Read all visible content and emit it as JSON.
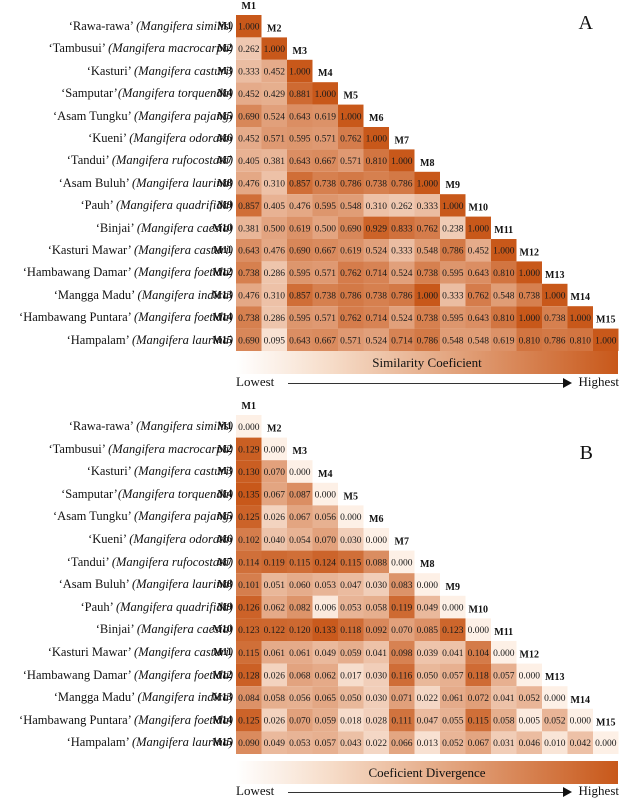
{
  "chart_data": [
    {
      "type": "heatmap",
      "panel_label": "A",
      "title": "Similarity Coeficient",
      "legend": {
        "title": "Similarity Coeficient",
        "low_label": "Lowest",
        "high_label": "Highest",
        "low_color": "#ffffff",
        "high_color": "#c8581a"
      },
      "row_labels": [
        {
          "name": "‘Rawa-rawa’ ",
          "species": "(Mangifera similis)",
          "code": "M1"
        },
        {
          "name": "‘Tambusui’ ",
          "species": "(Mangifera macrocarpa)",
          "code": "M2"
        },
        {
          "name": "‘Kasturi’ ",
          "species": "(Mangifera casturi)",
          "code": "M3"
        },
        {
          "name": "‘Samputar’",
          "species": "(Mangifera torquenda)",
          "code": "M4"
        },
        {
          "name": "‘Asam Tungku’ ",
          "species": "(Mangifera pajang)",
          "code": "M5"
        },
        {
          "name": "‘Kueni’ ",
          "species": "(Mangifera odorata)",
          "code": "M6"
        },
        {
          "name": "‘Tandui’ ",
          "species": "(Mangifera rufocostata)",
          "code": "M7"
        },
        {
          "name": "‘Asam Buluh’ ",
          "species": "(Mangifera laurina)",
          "code": "M8"
        },
        {
          "name": "‘Pauh’ ",
          "species": "(Mangifera quadrifida)",
          "code": "M9"
        },
        {
          "name": "‘Binjai’ ",
          "species": "(Mangifera caesia)",
          "code": "M10"
        },
        {
          "name": "‘Kasturi Mawar’ ",
          "species": "(Mangifera casturi)",
          "code": "M11"
        },
        {
          "name": "‘Hambawang Damar’ ",
          "species": "(Mangifera foetida)",
          "code": "M12"
        },
        {
          "name": "‘Mangga Madu’ ",
          "species": "(Mangifera indica)",
          "code": "M13"
        },
        {
          "name": "‘Hambawang Puntara’ ",
          "species": "(Mangifera foetida)",
          "code": "M14"
        },
        {
          "name": "‘Hampalam’ ",
          "species": "(Mangifera laurina)",
          "code": "M15"
        }
      ],
      "col_labels": [
        "M1",
        "M2",
        "M3",
        "M4",
        "M5",
        "M6",
        "M7",
        "M8",
        "M9",
        "M10",
        "M11",
        "M12",
        "M13",
        "M14",
        "M15"
      ],
      "value_range": [
        0,
        1
      ],
      "matrix": [
        [
          "1.000"
        ],
        [
          "0.262",
          "1.000"
        ],
        [
          "0.333",
          "0.452",
          "1.000"
        ],
        [
          "0.452",
          "0.429",
          "0.881",
          "1.000"
        ],
        [
          "0.690",
          "0.524",
          "0.643",
          "0.619",
          "1.000"
        ],
        [
          "0.452",
          "0.571",
          "0.595",
          "0.571",
          "0.762",
          "1.000"
        ],
        [
          "0.405",
          "0.381",
          "0.643",
          "0.667",
          "0.571",
          "0.810",
          "1.000"
        ],
        [
          "0.476",
          "0.310",
          "0.857",
          "0.738",
          "0.786",
          "0.738",
          "0.786",
          "1.000"
        ],
        [
          "0.857",
          "0.405",
          "0.476",
          "0.595",
          "0.548",
          "0.310",
          "0.262",
          "0.333",
          "1.000"
        ],
        [
          "0.381",
          "0.500",
          "0.619",
          "0.500",
          "0.690",
          "0.929",
          "0.833",
          "0.762",
          "0.238",
          "1.000"
        ],
        [
          "0.643",
          "0.476",
          "0.690",
          "0.667",
          "0.619",
          "0.524",
          "0.333",
          "0.548",
          "0.786",
          "0.452",
          "1.000"
        ],
        [
          "0.738",
          "0.286",
          "0.595",
          "0.571",
          "0.762",
          "0.714",
          "0.524",
          "0.738",
          "0.595",
          "0.643",
          "0.810",
          "1.000"
        ],
        [
          "0.476",
          "0.310",
          "0.857",
          "0.738",
          "0.786",
          "0.738",
          "0.786",
          "1.000",
          "0.333",
          "0.762",
          "0.548",
          "0.738",
          "1.000"
        ],
        [
          "0.738",
          "0.286",
          "0.595",
          "0.571",
          "0.762",
          "0.714",
          "0.524",
          "0.738",
          "0.595",
          "0.643",
          "0.810",
          "1.000",
          "0.738",
          "1.000"
        ],
        [
          "0.690",
          "0.095",
          "0.643",
          "0.667",
          "0.571",
          "0.524",
          "0.714",
          "0.786",
          "0.548",
          "0.548",
          "0.619",
          "0.810",
          "0.786",
          "0.810",
          "1.000"
        ]
      ]
    },
    {
      "type": "heatmap",
      "panel_label": "B",
      "title": "Coeficient Divergence",
      "legend": {
        "title": "Coeficient Divergence",
        "low_label": "Lowest",
        "high_label": "Highest",
        "low_color": "#ffffff",
        "high_color": "#c8581a"
      },
      "row_labels": [
        {
          "name": "‘Rawa-rawa’ ",
          "species": "(Mangifera similis)",
          "code": "M1"
        },
        {
          "name": "‘Tambusui’ ",
          "species": "(Mangifera macrocarpa)",
          "code": "M2"
        },
        {
          "name": "‘Kasturi’ ",
          "species": "(Mangifera casturi)",
          "code": "M3"
        },
        {
          "name": "‘Samputar’",
          "species": "(Mangifera torquenda)",
          "code": "M4"
        },
        {
          "name": "‘Asam Tungku’ ",
          "species": "(Mangifera pajang)",
          "code": "M5"
        },
        {
          "name": "‘Kueni’ ",
          "species": "(Mangifera odorata)",
          "code": "M6"
        },
        {
          "name": "‘Tandui’ ",
          "species": "(Mangifera rufocostata)",
          "code": "M7"
        },
        {
          "name": "‘Asam Buluh’ ",
          "species": "(Mangifera laurina)",
          "code": "M8"
        },
        {
          "name": "‘Pauh’ ",
          "species": "(Mangifera quadrifida)",
          "code": "M9"
        },
        {
          "name": "‘Binjai’ ",
          "species": "(Mangifera caesia)",
          "code": "M10"
        },
        {
          "name": "‘Kasturi Mawar’ ",
          "species": "(Mangifera casturi)",
          "code": "M11"
        },
        {
          "name": "‘Hambawang Damar’ ",
          "species": "(Mangifera foetida)",
          "code": "M12"
        },
        {
          "name": "‘Mangga Madu’ ",
          "species": "(Mangifera indica)",
          "code": "M13"
        },
        {
          "name": "‘Hambawang Puntara’ ",
          "species": "(Mangifera foetida)",
          "code": "M14"
        },
        {
          "name": "‘Hampalam’ ",
          "species": "(Mangifera laurina)",
          "code": "M15"
        }
      ],
      "col_labels": [
        "M1",
        "M2",
        "M3",
        "M4",
        "M5",
        "M6",
        "M7",
        "M8",
        "M9",
        "M10",
        "M11",
        "M12",
        "M13",
        "M14",
        "M15"
      ],
      "value_range": [
        0,
        0.135
      ],
      "matrix": [
        [
          "0.000"
        ],
        [
          "0.129",
          "0.000"
        ],
        [
          "0.130",
          "0.070",
          "0.000"
        ],
        [
          "0.135",
          "0.067",
          "0.087",
          "0.000"
        ],
        [
          "0.125",
          "0.026",
          "0.067",
          "0.056",
          "0.000"
        ],
        [
          "0.102",
          "0.040",
          "0.054",
          "0.070",
          "0.030",
          "0.000"
        ],
        [
          "0.114",
          "0.119",
          "0.115",
          "0.124",
          "0.115",
          "0.088",
          "0.000"
        ],
        [
          "0.101",
          "0.051",
          "0.060",
          "0.053",
          "0.047",
          "0.030",
          "0.083",
          "0.000"
        ],
        [
          "0.126",
          "0.062",
          "0.082",
          "0.006",
          "0.053",
          "0.058",
          "0.119",
          "0.049",
          "0.000"
        ],
        [
          "0.123",
          "0.122",
          "0.120",
          "0.133",
          "0.118",
          "0.092",
          "0.070",
          "0.085",
          "0.123",
          "0.000"
        ],
        [
          "0.115",
          "0.061",
          "0.061",
          "0.049",
          "0.059",
          "0.041",
          "0.098",
          "0.039",
          "0.041",
          "0.104",
          "0.000"
        ],
        [
          "0.128",
          "0.026",
          "0.068",
          "0.062",
          "0.017",
          "0.030",
          "0.116",
          "0.050",
          "0.057",
          "0.118",
          "0.057",
          "0.000"
        ],
        [
          "0.084",
          "0.058",
          "0.056",
          "0.065",
          "0.050",
          "0.030",
          "0.071",
          "0.022",
          "0.061",
          "0.072",
          "0.041",
          "0.052",
          "0.000"
        ],
        [
          "0.125",
          "0.026",
          "0.070",
          "0.059",
          "0.018",
          "0.028",
          "0.111",
          "0.047",
          "0.055",
          "0.115",
          "0.058",
          "0.005",
          "0.052",
          "0.000"
        ],
        [
          "0.090",
          "0.049",
          "0.053",
          "0.057",
          "0.043",
          "0.022",
          "0.066",
          "0.013",
          "0.052",
          "0.067",
          "0.031",
          "0.046",
          "0.010",
          "0.042",
          "0.000"
        ]
      ]
    }
  ]
}
